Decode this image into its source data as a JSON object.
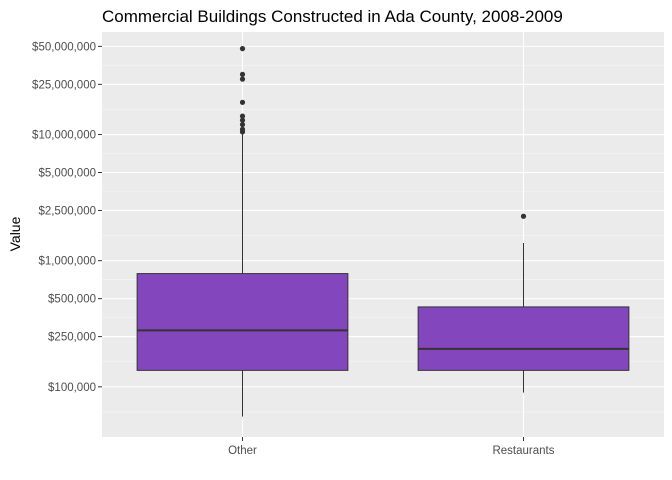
{
  "chart_data": {
    "type": "boxplot",
    "title": "Commercial Buildings Constructed in Ada County, 2008-2009",
    "xlabel": "",
    "ylabel": "Value",
    "y_scale": "log10",
    "ylim": [
      40000,
      65000000
    ],
    "y_ticks": [
      {
        "value": 100000,
        "label": "$100,000"
      },
      {
        "value": 250000,
        "label": "$250,000"
      },
      {
        "value": 500000,
        "label": "$500,000"
      },
      {
        "value": 1000000,
        "label": "$1,000,000"
      },
      {
        "value": 2500000,
        "label": "$2,500,000"
      },
      {
        "value": 5000000,
        "label": "$5,000,000"
      },
      {
        "value": 10000000,
        "label": "$10,000,000"
      },
      {
        "value": 25000000,
        "label": "$25,000,000"
      },
      {
        "value": 50000000,
        "label": "$50,000,000"
      }
    ],
    "categories": [
      "Other",
      "Restaurants"
    ],
    "boxes": [
      {
        "category": "Other",
        "whisker_low": 58000,
        "q1": 135000,
        "median": 280000,
        "q3": 790000,
        "whisker_high": 10000000,
        "outliers": [
          48000000,
          30000000,
          27500000,
          18000000,
          14000000,
          13000000,
          12000000,
          11000000,
          10500000
        ]
      },
      {
        "category": "Restaurants",
        "whisker_low": 90000,
        "q1": 135000,
        "median": 200000,
        "q3": 430000,
        "whisker_high": 1380000,
        "outliers": [
          2250000
        ]
      }
    ],
    "grid": true,
    "legend": "none",
    "colors": {
      "box_fill": "#8346bd",
      "box_line": "#333333",
      "panel_bg": "#ebebeb",
      "grid_major": "#ffffff",
      "grid_minor": "#f5f5f5",
      "outlier": "#333333"
    }
  }
}
